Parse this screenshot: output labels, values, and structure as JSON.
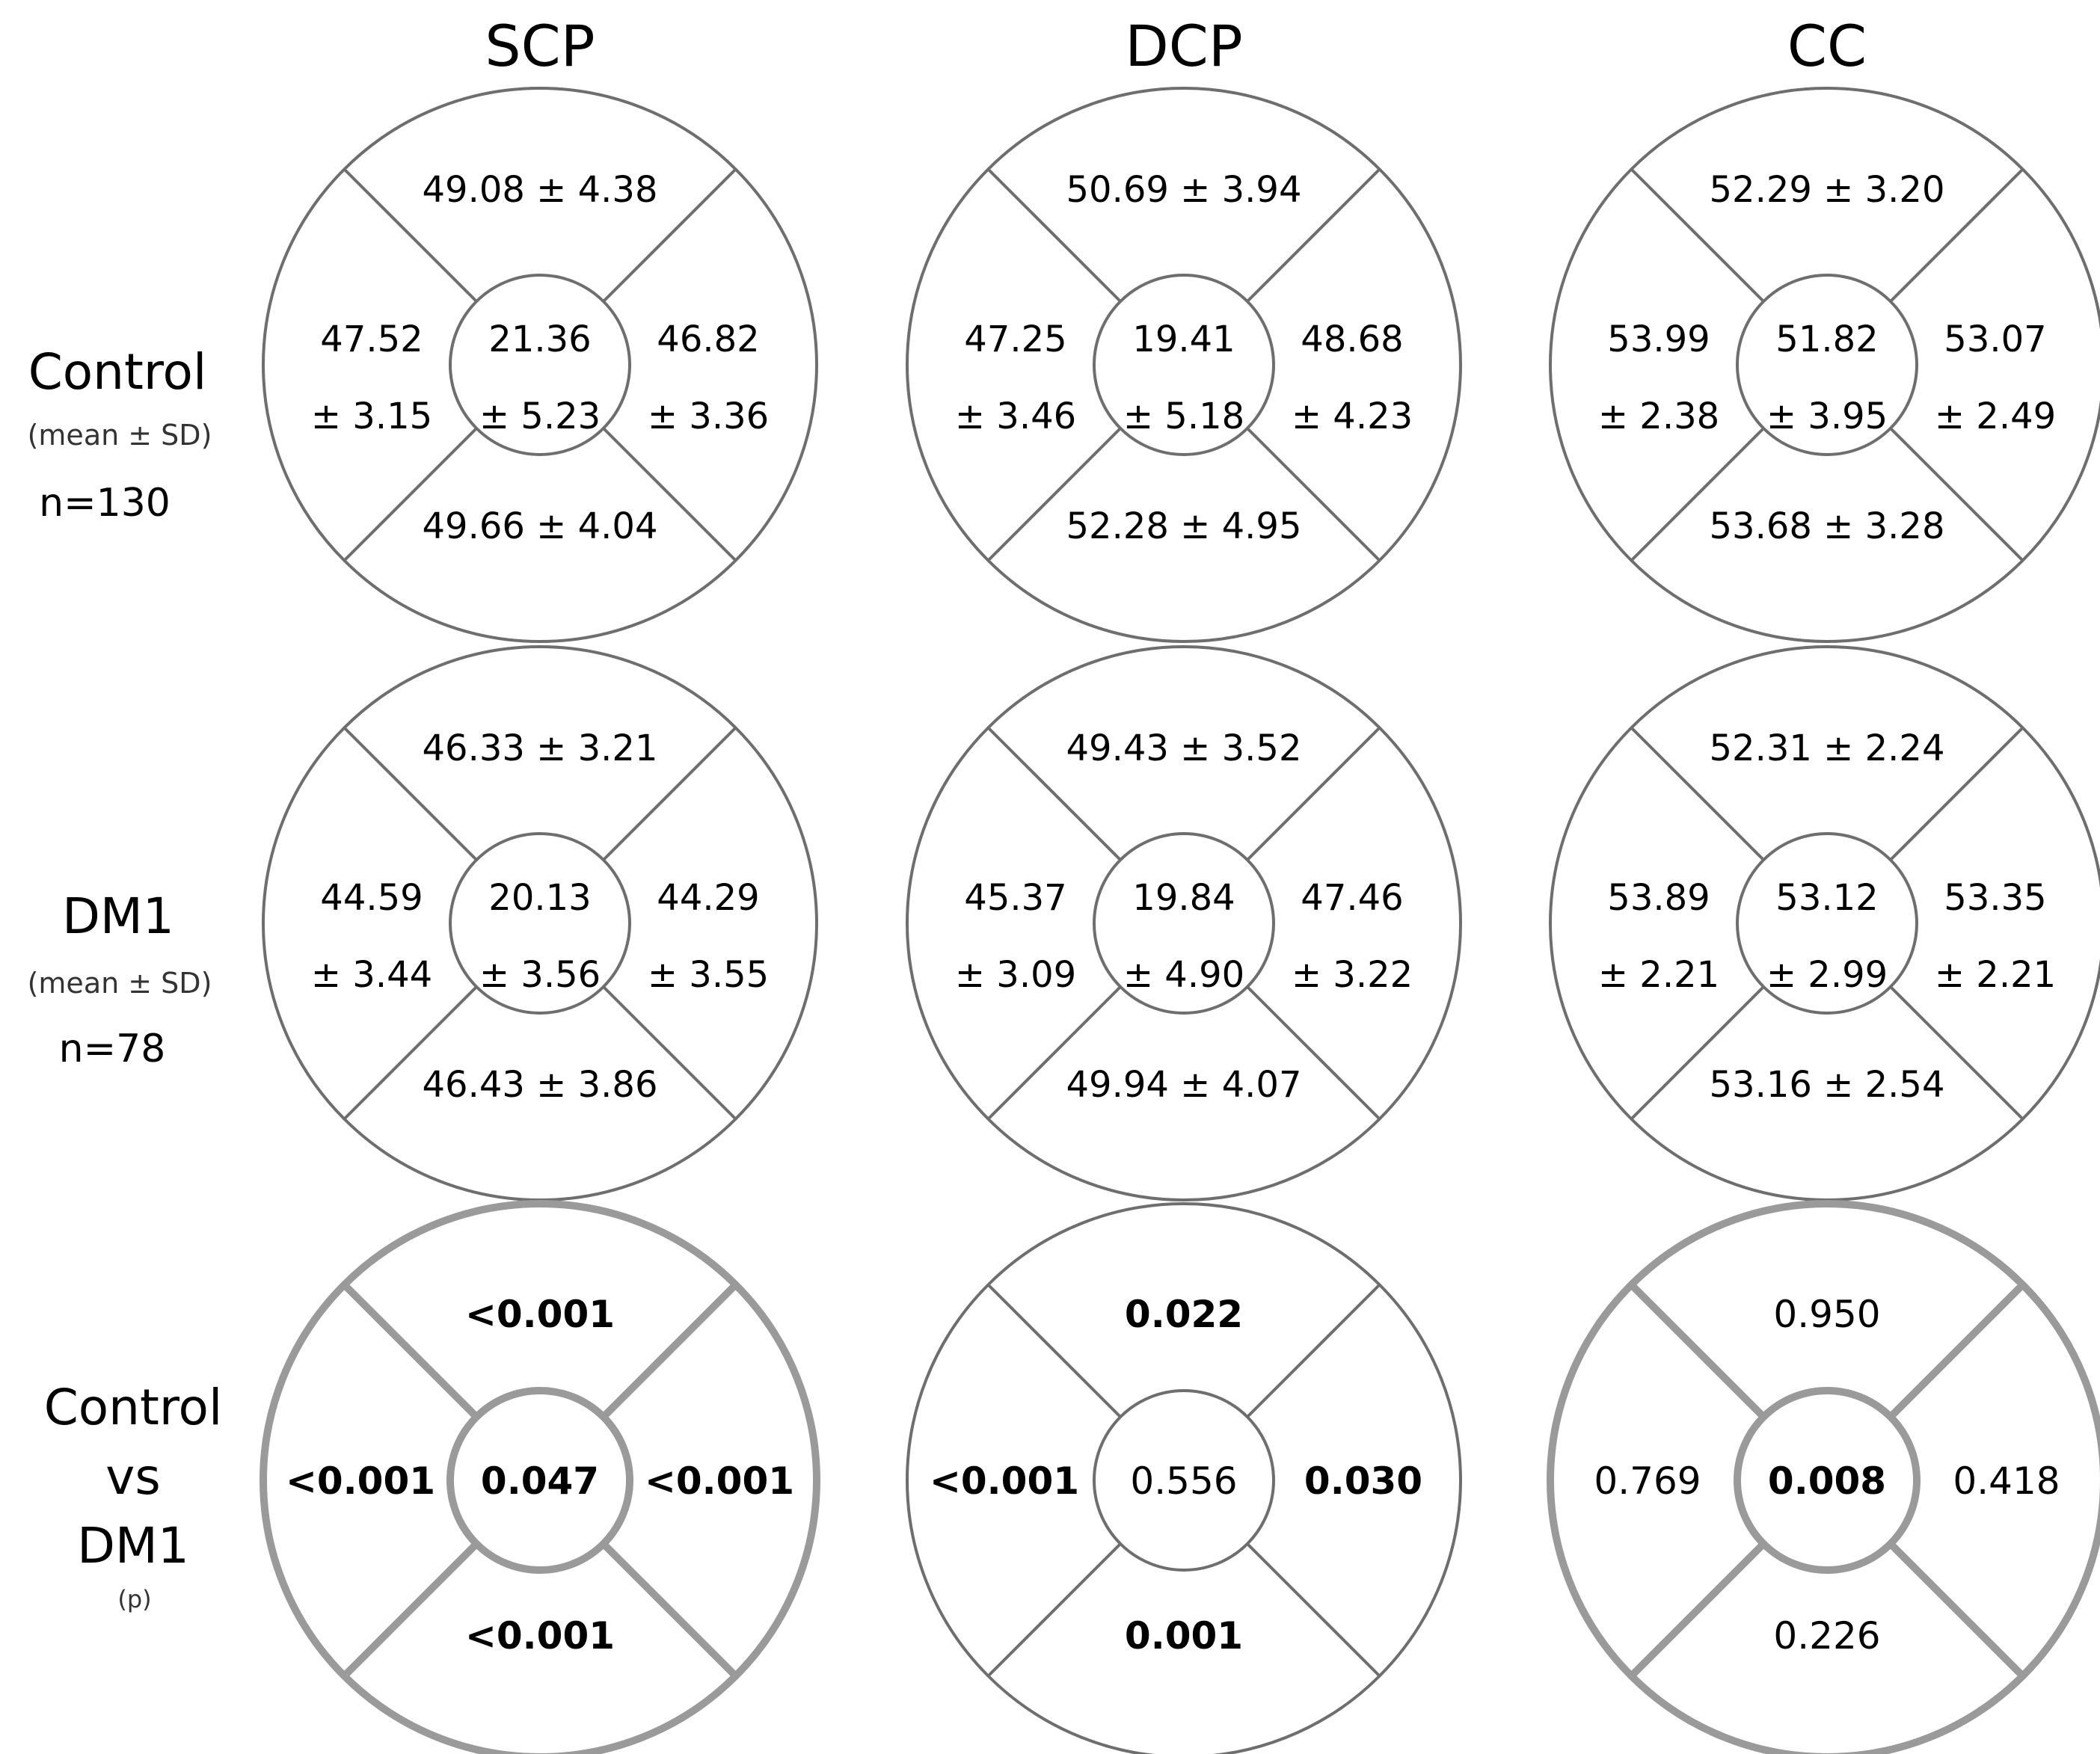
{
  "columns": [
    "SCP",
    "DCP",
    "CC"
  ],
  "rows": [
    {
      "label": "Control",
      "sublabel": "(mean ± SD)",
      "n": "n=130",
      "diagrams": [
        {
          "top": "49.08 ± 4.38",
          "left": [
            "47.52",
            "± 3.15"
          ],
          "center": [
            "21.36",
            "± 5.23"
          ],
          "right": [
            "46.82",
            "± 3.36"
          ],
          "bottom": "49.66 ± 4.04"
        },
        {
          "top": "50.69 ± 3.94",
          "left": [
            "47.25",
            "± 3.46"
          ],
          "center": [
            "19.41",
            "± 5.18"
          ],
          "right": [
            "48.68",
            "± 4.23"
          ],
          "bottom": "52.28 ± 4.95"
        },
        {
          "top": "52.29 ± 3.20",
          "left": [
            "53.99",
            "± 2.38"
          ],
          "center": [
            "51.82",
            "± 3.95"
          ],
          "right": [
            "53.07",
            "± 2.49"
          ],
          "bottom": "53.68 ± 3.28"
        }
      ]
    },
    {
      "label": "DM1",
      "sublabel": "(mean ± SD)",
      "n": "n=78",
      "diagrams": [
        {
          "top": "46.33 ± 3.21",
          "left": [
            "44.59",
            "± 3.44"
          ],
          "center": [
            "20.13",
            "± 3.56"
          ],
          "right": [
            "44.29",
            "± 3.55"
          ],
          "bottom": "46.43 ± 3.86"
        },
        {
          "top": "49.43 ± 3.52",
          "left": [
            "45.37",
            "± 3.09"
          ],
          "center": [
            "19.84",
            "± 4.90"
          ],
          "right": [
            "47.46",
            "± 3.22"
          ],
          "bottom": "49.94 ± 4.07"
        },
        {
          "top": "52.31 ± 2.24",
          "left": [
            "53.89",
            "± 2.21"
          ],
          "center": [
            "53.12",
            "± 2.99"
          ],
          "right": [
            "53.35",
            "± 2.21"
          ],
          "bottom": "53.16 ± 2.54"
        }
      ]
    },
    {
      "label_lines": [
        "Control",
        "vs",
        "DM1"
      ],
      "sublabel": "(p)",
      "diagrams": [
        {
          "top": {
            "v": "<0.001",
            "sig": true
          },
          "left": {
            "v": "<0.001",
            "sig": true
          },
          "center": {
            "v": "0.047",
            "sig": true
          },
          "right": {
            "v": "<0.001",
            "sig": true
          },
          "bottom": {
            "v": "<0.001",
            "sig": true
          }
        },
        {
          "top": {
            "v": "0.022",
            "sig": true
          },
          "left": {
            "v": "<0.001",
            "sig": true
          },
          "center": {
            "v": "0.556",
            "sig": false
          },
          "right": {
            "v": "0.030",
            "sig": true
          },
          "bottom": {
            "v": "0.001",
            "sig": true
          }
        },
        {
          "top": {
            "v": "0.950",
            "sig": false
          },
          "left": {
            "v": "0.769",
            "sig": false
          },
          "center": {
            "v": "0.008",
            "sig": true
          },
          "right": {
            "v": "0.418",
            "sig": false
          },
          "bottom": {
            "v": "0.226",
            "sig": false
          }
        }
      ]
    }
  ],
  "colors": {
    "significant": "#ff0000",
    "normal": "#000000"
  }
}
